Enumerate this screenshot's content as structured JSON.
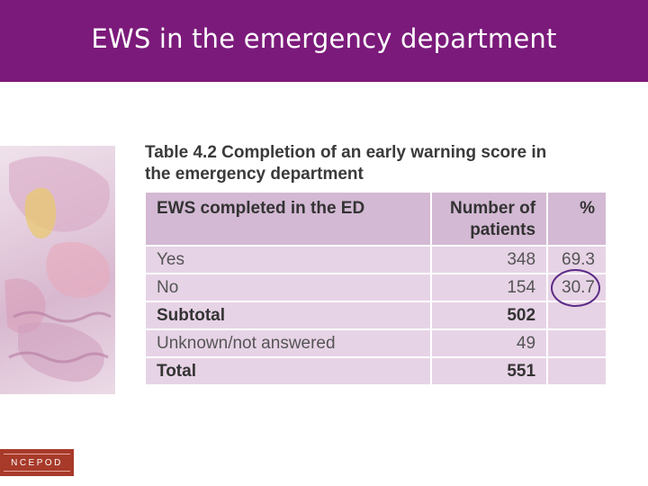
{
  "slide": {
    "title": "EWS in the emergency department"
  },
  "table": {
    "caption_line1": "Table 4.2 Completion of an early warning score in",
    "caption_line2": "the emergency department",
    "headers": {
      "label": "EWS completed in the ED",
      "count_line1": "Number of",
      "count_line2": "patients",
      "percent": "%"
    },
    "rows": [
      {
        "label": "Yes",
        "count": "348",
        "percent": "69.3"
      },
      {
        "label": "No",
        "count": "154",
        "percent": "30.7"
      },
      {
        "label": "Subtotal",
        "count": "502",
        "percent": ""
      },
      {
        "label": "Unknown/not answered",
        "count": "49",
        "percent": ""
      },
      {
        "label": "Total",
        "count": "551",
        "percent": ""
      }
    ]
  },
  "highlight": {
    "target": "30.7",
    "color": "#5b2a86"
  },
  "logo": {
    "text": "NCEPOD",
    "color": "#a83a2a"
  },
  "colors": {
    "header_bg": "#7b1a7b",
    "table_header_bg": "#d3b9d3",
    "table_row_bg": "#e7d3e6"
  }
}
